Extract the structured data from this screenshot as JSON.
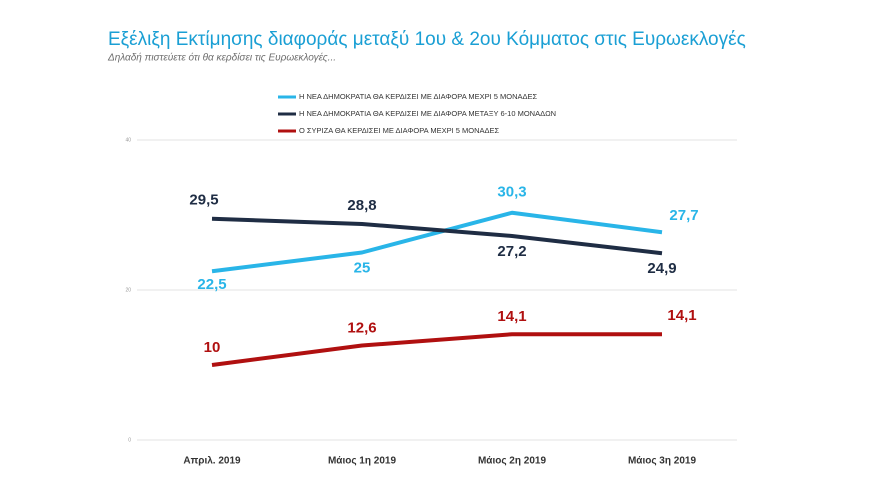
{
  "chart_data": {
    "type": "line",
    "title": "Εξέλιξη Εκτίμησης διαφοράς μεταξύ 1ου & 2ου Κόμματος στις Ευρωεκλογές",
    "subtitle": "Δηλαδή πιστεύετε ότι θα κερδίσει τις Ευρωεκλογές...",
    "categories": [
      "Απριλ. 2019",
      "Μάιος 1η 2019",
      "Μάιος 2η 2019",
      "Μάιος 3η 2019"
    ],
    "series": [
      {
        "name": "Η ΝΕΑ ΔΗΜΟΚΡΑΤΙΑ ΘΑ ΚΕΡΔΙΣΕΙ ΜΕ ΔΙΑΦΟΡΑ ΜΕΧΡΙ 5 ΜΟΝΑΔΕΣ",
        "color": "#29b5e8",
        "values": [
          22.5,
          25,
          30.3,
          27.7
        ],
        "value_labels": [
          "22,5",
          "25",
          "30,3",
          "27,7"
        ]
      },
      {
        "name": "Η ΝΕΑ ΔΗΜΟΚΡΑΤΙΑ ΘΑ ΚΕΡΔΙΣΕΙ ΜΕ ΔΙΑΦΟΡΑ ΜΕΤΑΞΥ 6-10 ΜΟΝΑΔΩΝ",
        "color": "#1f2d44",
        "values": [
          29.5,
          28.8,
          27.2,
          24.9
        ],
        "value_labels": [
          "29,5",
          "28,8",
          "27,2",
          "24,9"
        ]
      },
      {
        "name": "Ο ΣΥΡΙΖΑ ΘΑ ΚΕΡΔΙΣΕΙ ΜΕ ΔΙΑΦΟΡΑ ΜΕΧΡΙ 5 ΜΟΝΑΔΕΣ",
        "color": "#b01010",
        "values": [
          10,
          12.6,
          14.1,
          14.1
        ],
        "value_labels": [
          "10",
          "12,6",
          "14,1",
          "14,1"
        ]
      }
    ],
    "ylim": [
      0,
      40
    ],
    "yticks": [
      0,
      20,
      40
    ],
    "grid": true
  }
}
